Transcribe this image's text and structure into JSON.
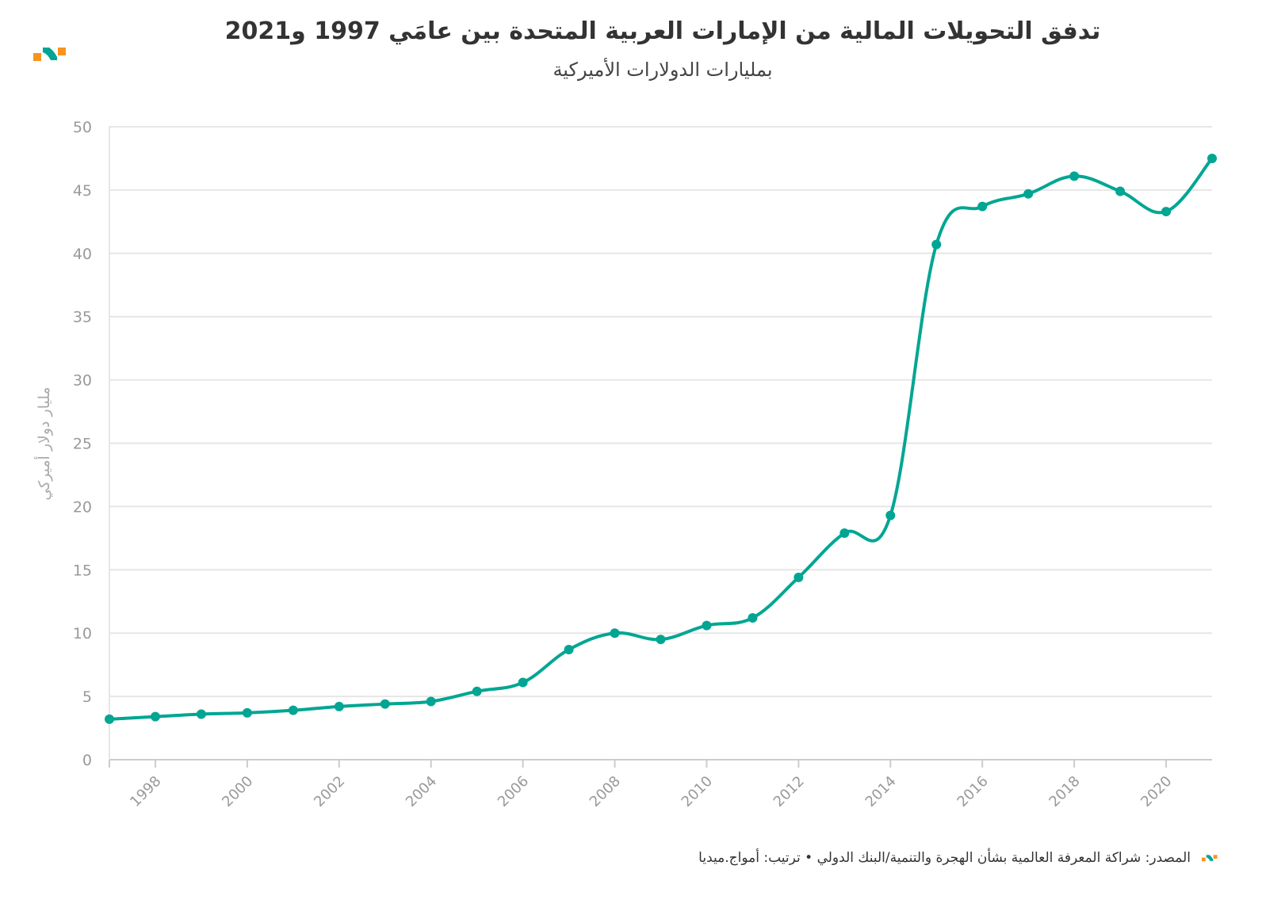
{
  "header": {
    "title": "تدفق التحويلات المالية من الإمارات العربية المتحدة بين عامَي 1997 و2021",
    "subtitle": "بمليارات الدولارات الأميركية"
  },
  "footer": {
    "source": "المصدر: شراكة المعرفة العالمية بشأن الهجرة والتنمية/البنك الدولي • ترتيب: أمواج.ميديا"
  },
  "colors": {
    "line": "#00a693",
    "logo_orange": "#f7941d",
    "grid": "#e6e6e6"
  },
  "chart_data": {
    "type": "line",
    "title": "تدفق التحويلات المالية من الإمارات العربية المتحدة بين عامَي 1997 و2021",
    "subtitle": "بمليارات الدولارات الأميركية",
    "ylabel": "مليار دولار أميركي",
    "xlabel": "",
    "ylim": [
      0,
      50
    ],
    "xlim": [
      1997,
      2021
    ],
    "yticks": [
      "0",
      "5",
      "10",
      "15",
      "20",
      "25",
      "30",
      "35",
      "40",
      "45",
      "50"
    ],
    "xticks": [
      "1998",
      "2000",
      "2002",
      "2004",
      "2006",
      "2008",
      "2010",
      "2012",
      "2014",
      "2016",
      "2018",
      "2020"
    ],
    "grid": true,
    "x": [
      1997,
      1998,
      1999,
      2000,
      2001,
      2002,
      2003,
      2004,
      2005,
      2006,
      2007,
      2008,
      2009,
      2010,
      2011,
      2012,
      2013,
      2014,
      2015,
      2016,
      2017,
      2018,
      2019,
      2020,
      2021
    ],
    "series": [
      {
        "name": "التحويلات",
        "values": [
          3.2,
          3.4,
          3.6,
          3.7,
          3.9,
          4.2,
          4.4,
          4.6,
          5.4,
          6.1,
          8.7,
          10.0,
          9.5,
          10.6,
          11.2,
          14.4,
          17.9,
          19.3,
          40.7,
          43.7,
          44.7,
          46.1,
          44.9,
          43.3,
          47.5
        ]
      }
    ]
  }
}
